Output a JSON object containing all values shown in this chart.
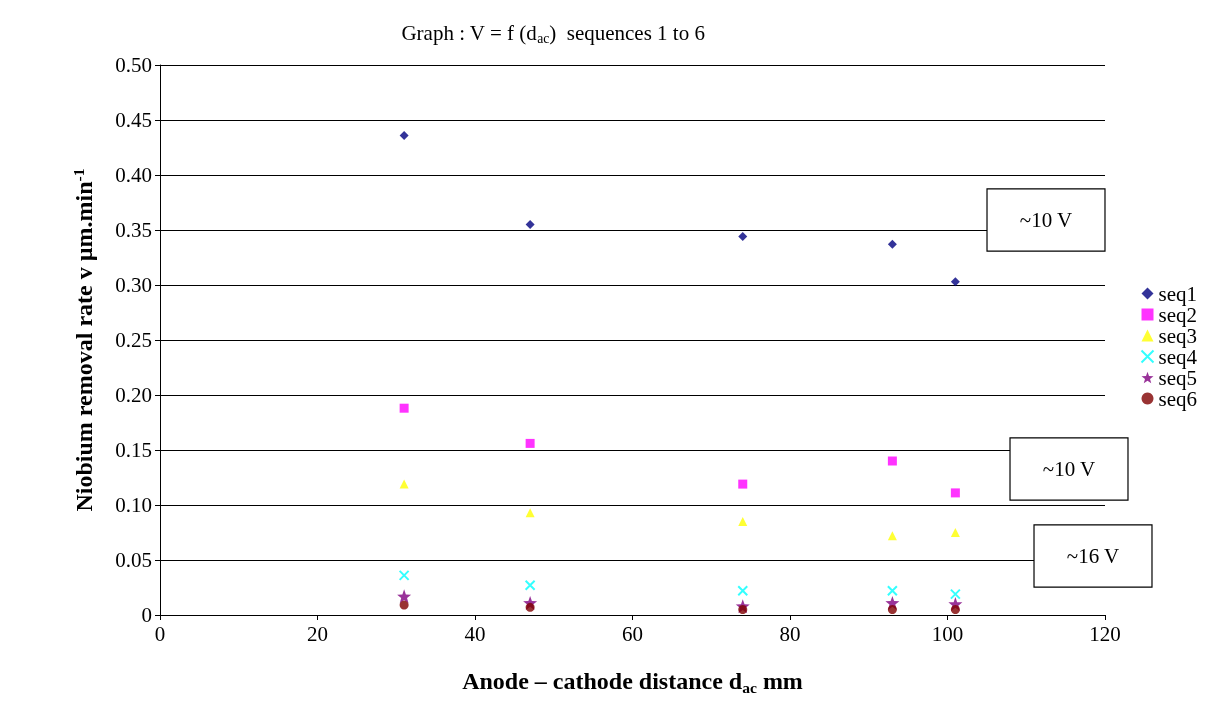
{
  "chart_data": {
    "type": "scatter",
    "title": "Graph : V = f (d$_{ac}$)  sequences 1 to 6",
    "xlabel": "Anode – cathode distance d$_{ac}$ mm",
    "ylabel": "Niobium removal rate v µm.min$^{-1}$",
    "x": [
      31,
      47,
      74,
      93,
      101
    ],
    "series": [
      {
        "name": "seq1",
        "color": "#000080",
        "marker": "diamond",
        "values": [
          0.436,
          0.355,
          0.344,
          0.337,
          0.303
        ]
      },
      {
        "name": "seq2",
        "color": "#ff00ff",
        "marker": "square",
        "values": [
          0.188,
          0.156,
          0.119,
          0.14,
          0.111
        ]
      },
      {
        "name": "seq3",
        "color": "#ffff00",
        "marker": "triangle",
        "values": [
          0.119,
          0.093,
          0.085,
          0.072,
          0.075
        ]
      },
      {
        "name": "seq4",
        "color": "#00ffff",
        "marker": "cross",
        "values": [
          0.036,
          0.027,
          0.022,
          0.022,
          0.019
        ]
      },
      {
        "name": "seq5",
        "color": "#800080",
        "marker": "star",
        "values": [
          0.017,
          0.011,
          0.008,
          0.011,
          0.01
        ]
      },
      {
        "name": "seq6",
        "color": "#800000",
        "marker": "circle",
        "values": [
          0.009,
          0.007,
          0.005,
          0.005,
          0.005
        ]
      }
    ],
    "xlim": [
      0,
      120
    ],
    "xticks": [
      0,
      20,
      40,
      60,
      80,
      100,
      120
    ],
    "ylim": [
      0,
      0.5
    ],
    "yticks": [
      0,
      {
        "value": 0.05,
        "label": "0.05"
      },
      {
        "value": 0.1,
        "label": "0.10"
      },
      {
        "value": 0.15,
        "label": "0.15"
      },
      {
        "value": 0.2,
        "label": "0.20"
      },
      {
        "value": 0.25,
        "label": "0.25"
      },
      {
        "value": 0.3,
        "label": "0.30"
      },
      {
        "value": 0.35,
        "label": "0.35"
      },
      {
        "value": 0.4,
        "label": "0.40"
      },
      {
        "value": 0.45,
        "label": "0.45"
      },
      {
        "value": 0.5,
        "label": "0.50"
      }
    ],
    "grid": "y",
    "legend": "right",
    "annotations": [
      "~10 V",
      "~10 V",
      "~16 V"
    ]
  }
}
